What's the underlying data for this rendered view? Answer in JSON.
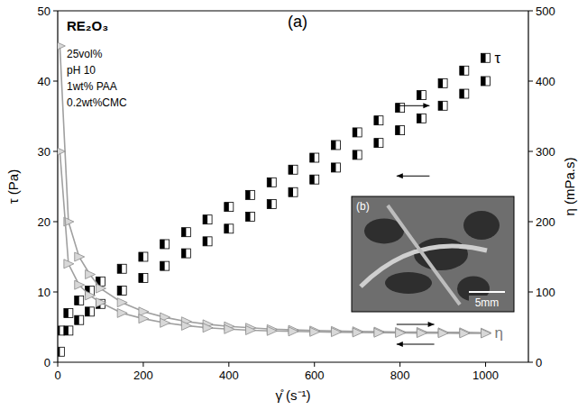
{
  "chart_data": {
    "type": "line",
    "title": "(a)",
    "x_label": "γ̊ (s⁻¹)",
    "y_label": "τ (Pa)",
    "y2_label": "η (mPa.s)",
    "annotations": [
      "RE₂O₃",
      "25vol%",
      "pH 10",
      "1wt% PAA",
      "0.2wt%CMC"
    ],
    "inset_labels": [
      "(b)",
      "5mm"
    ],
    "x": [
      5,
      25,
      50,
      75,
      100,
      150,
      200,
      250,
      300,
      350,
      400,
      450,
      500,
      550,
      600,
      650,
      700,
      750,
      800,
      850,
      900,
      950,
      1000
    ],
    "xlim": [
      0,
      1100
    ],
    "xticks": [
      0,
      200,
      400,
      600,
      800,
      1000
    ],
    "ylim": [
      0,
      50
    ],
    "yticks": [
      0,
      10,
      20,
      30,
      40,
      50
    ],
    "y2lim": [
      0,
      500
    ],
    "y2ticks": [
      0,
      100,
      200,
      300,
      400,
      500
    ],
    "grid": false,
    "series": [
      {
        "name": "τ",
        "color": "#000000",
        "marker": "square",
        "line_style": "none",
        "values": [
          4.5,
          7,
          8.8,
          10.2,
          11.5,
          13.3,
          15,
          16.8,
          18.5,
          20.3,
          22.1,
          23.8,
          25.6,
          27.4,
          29.1,
          30.9,
          32.7,
          34.4,
          36.2,
          38,
          39.7,
          41.5,
          43.3
        ]
      },
      {
        "name": "τ",
        "color": "#000000",
        "marker": "square",
        "line_style": "none",
        "values": [
          1.5,
          4.5,
          6,
          7.2,
          8.3,
          10.2,
          12,
          13.7,
          15.5,
          17.2,
          19,
          20.7,
          22.5,
          24.2,
          26,
          27.7,
          29.5,
          31.2,
          33,
          34.7,
          36.5,
          38.2,
          40
        ]
      },
      {
        "name": "η",
        "color": "#a0a0a0",
        "marker": "triangle",
        "line_style": "solid",
        "axis": "y2",
        "values": [
          450,
          200,
          150,
          125,
          105,
          85,
          72,
          64,
          58,
          54,
          51,
          49,
          47,
          46,
          45,
          44.5,
          44,
          43.5,
          43,
          43,
          42.5,
          42.5,
          42
        ]
      },
      {
        "name": "η",
        "color": "#a0a0a0",
        "marker": "triangle",
        "line_style": "solid",
        "axis": "y2",
        "values": [
          300,
          140,
          110,
          95,
          85,
          70,
          62,
          56,
          52,
          49,
          47,
          45.5,
          44.5,
          43.8,
          43.2,
          42.8,
          42.4,
          42,
          41.7,
          41.5,
          41.3,
          41.1,
          41
        ]
      }
    ]
  }
}
